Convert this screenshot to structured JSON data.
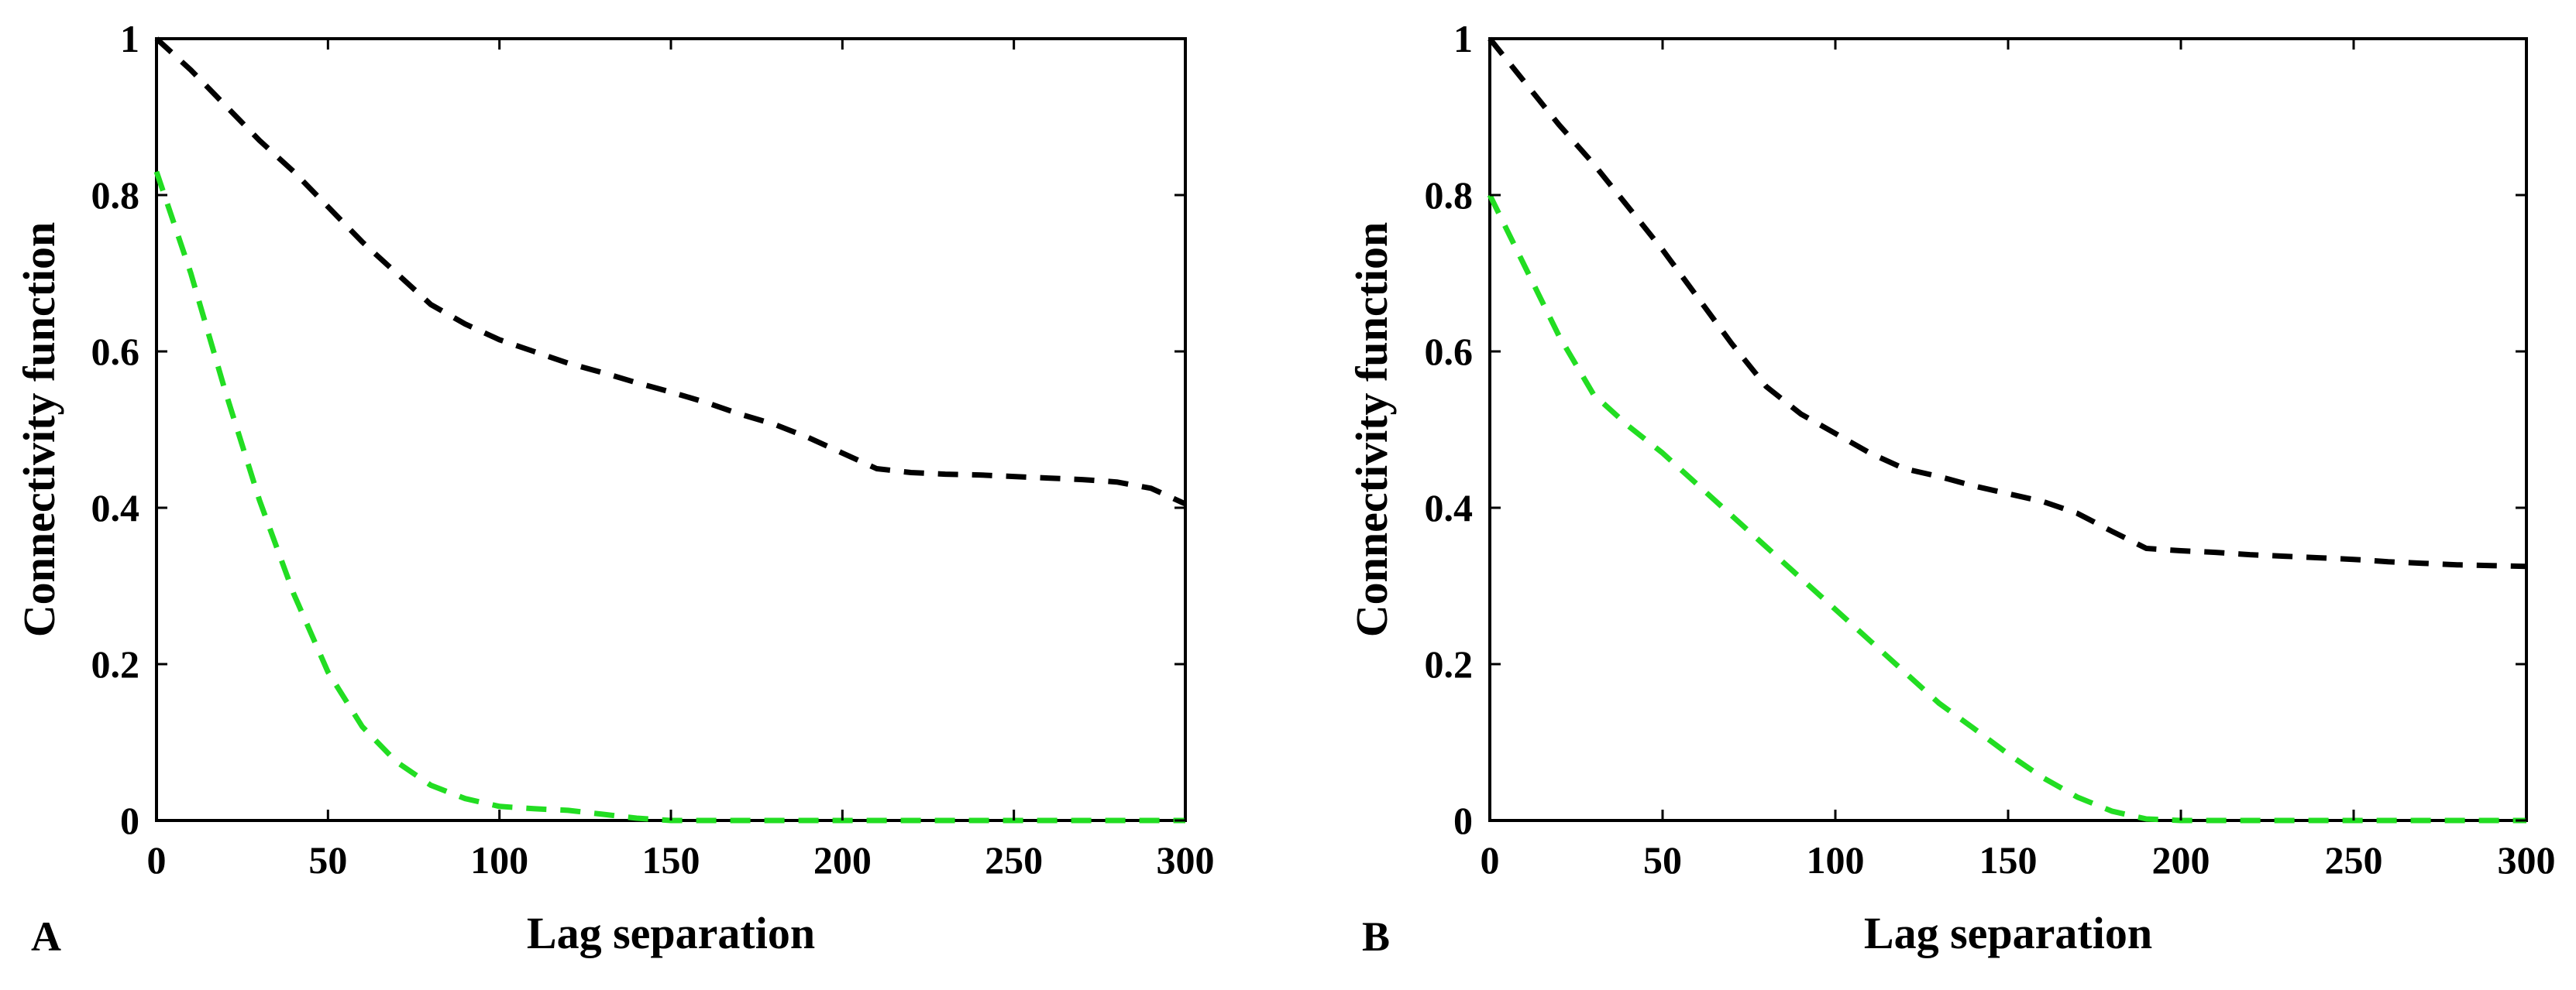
{
  "chart_data": [
    {
      "type": "line",
      "panel_label": "A",
      "xlabel": "Lag separation",
      "ylabel": "Connectivity function",
      "xlim": [
        0,
        300
      ],
      "ylim": [
        0,
        1
      ],
      "xticks": [
        0,
        50,
        100,
        150,
        200,
        250,
        300
      ],
      "yticks": [
        0,
        0.2,
        0.4,
        0.6,
        0.8,
        1
      ],
      "xtick_labels": [
        "0",
        "50",
        "100",
        "150",
        "200",
        "250",
        "300"
      ],
      "ytick_labels": [
        "0",
        "0.2",
        "0.4",
        "0.6",
        "0.8",
        "1"
      ],
      "grid": false,
      "series": [
        {
          "color": "#000000",
          "style": "dashed",
          "x": [
            0,
            10,
            20,
            30,
            40,
            50,
            60,
            70,
            80,
            90,
            100,
            110,
            120,
            130,
            140,
            150,
            160,
            170,
            180,
            190,
            200,
            210,
            220,
            230,
            240,
            250,
            260,
            270,
            280,
            290,
            300
          ],
          "y": [
            1.0,
            0.96,
            0.915,
            0.87,
            0.83,
            0.785,
            0.74,
            0.7,
            0.66,
            0.635,
            0.615,
            0.6,
            0.585,
            0.573,
            0.56,
            0.548,
            0.535,
            0.52,
            0.507,
            0.49,
            0.47,
            0.45,
            0.445,
            0.443,
            0.442,
            0.44,
            0.438,
            0.436,
            0.433,
            0.425,
            0.405
          ]
        },
        {
          "color": "#22dd22",
          "style": "dashed",
          "x": [
            0,
            10,
            20,
            30,
            40,
            50,
            60,
            70,
            80,
            90,
            100,
            110,
            120,
            130,
            140,
            150,
            175,
            200,
            225,
            250,
            275,
            300
          ],
          "y": [
            0.83,
            0.7,
            0.55,
            0.41,
            0.29,
            0.19,
            0.12,
            0.075,
            0.045,
            0.028,
            0.018,
            0.015,
            0.013,
            0.008,
            0.003,
            0.0,
            0.0,
            0.0,
            0.0,
            0.0,
            0.0,
            0.0
          ]
        }
      ]
    },
    {
      "type": "line",
      "panel_label": "B",
      "xlabel": "Lag separation",
      "ylabel": "Connectivity function",
      "xlim": [
        0,
        300
      ],
      "ylim": [
        0,
        1
      ],
      "xticks": [
        0,
        50,
        100,
        150,
        200,
        250,
        300
      ],
      "yticks": [
        0,
        0.2,
        0.4,
        0.6,
        0.8,
        1
      ],
      "xtick_labels": [
        "0",
        "50",
        "100",
        "150",
        "200",
        "250",
        "300"
      ],
      "ytick_labels": [
        "0",
        "0.2",
        "0.4",
        "0.6",
        "0.8",
        "1"
      ],
      "grid": false,
      "series": [
        {
          "color": "#000000",
          "style": "dashed",
          "x": [
            0,
            10,
            20,
            30,
            40,
            50,
            60,
            70,
            80,
            90,
            100,
            110,
            120,
            130,
            140,
            150,
            160,
            170,
            180,
            190,
            200,
            210,
            220,
            230,
            240,
            250,
            260,
            270,
            280,
            290,
            300
          ],
          "y": [
            1.0,
            0.945,
            0.89,
            0.84,
            0.785,
            0.73,
            0.67,
            0.61,
            0.555,
            0.52,
            0.495,
            0.47,
            0.45,
            0.44,
            0.428,
            0.418,
            0.408,
            0.393,
            0.37,
            0.348,
            0.345,
            0.343,
            0.34,
            0.338,
            0.336,
            0.334,
            0.331,
            0.329,
            0.327,
            0.326,
            0.325
          ]
        },
        {
          "color": "#22dd22",
          "style": "dashed",
          "x": [
            0,
            10,
            20,
            30,
            40,
            50,
            60,
            70,
            80,
            90,
            100,
            110,
            120,
            130,
            140,
            150,
            160,
            170,
            180,
            190,
            200,
            225,
            250,
            275,
            300
          ],
          "y": [
            0.8,
            0.71,
            0.62,
            0.545,
            0.505,
            0.47,
            0.43,
            0.39,
            0.35,
            0.31,
            0.27,
            0.23,
            0.19,
            0.15,
            0.118,
            0.085,
            0.055,
            0.03,
            0.012,
            0.002,
            0.0,
            0.0,
            0.0,
            0.0,
            0.0
          ]
        }
      ]
    }
  ]
}
